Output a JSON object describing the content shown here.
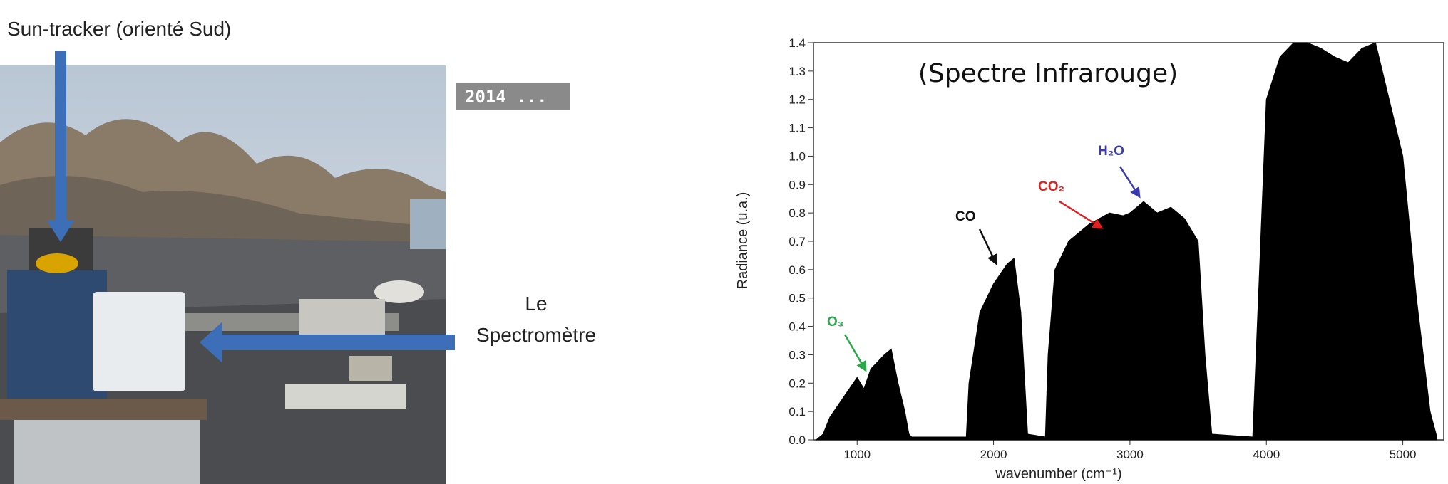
{
  "labels": {
    "sun_tracker": "Sun-tracker (orienté Sud)",
    "year": "2014 ...",
    "spectrometer_line1": "Le",
    "spectrometer_line2": "Spectromètre"
  },
  "chart_data": {
    "type": "area",
    "title": "(Spectre Infrarouge)",
    "x_label": "wavenumber (cm⁻¹)",
    "y_label": "Radiance (u.a.)",
    "annotations": [
      {
        "text": "O₃",
        "color": "#2aa84a"
      },
      {
        "text": "CO",
        "color": "#111111"
      },
      {
        "text": "CO₂",
        "color": "#e02020"
      },
      {
        "text": "H₂O",
        "color": "#3b3bb0"
      }
    ],
    "series": [
      {
        "color": "#000000",
        "x": [
          700,
          750,
          800,
          900,
          1000,
          1050,
          1100,
          1200,
          1250,
          1300,
          1350,
          1380,
          1400,
          1800,
          1820,
          1900,
          2000,
          2100,
          2150,
          2200,
          2250,
          2380,
          2400,
          2450,
          2550,
          2700,
          2850,
          2950,
          3000,
          3100,
          3200,
          3300,
          3400,
          3500,
          3550,
          3600,
          3900,
          3950,
          4000,
          4100,
          4200,
          4300,
          4400,
          4500,
          4600,
          4700,
          4800,
          4850,
          4900,
          5000,
          5100,
          5200,
          5250
        ],
        "values": [
          0.0,
          0.02,
          0.08,
          0.15,
          0.22,
          0.18,
          0.25,
          0.3,
          0.32,
          0.2,
          0.1,
          0.02,
          0.01,
          0.01,
          0.2,
          0.45,
          0.55,
          0.62,
          0.64,
          0.45,
          0.02,
          0.01,
          0.3,
          0.6,
          0.7,
          0.76,
          0.8,
          0.79,
          0.8,
          0.84,
          0.8,
          0.82,
          0.78,
          0.7,
          0.3,
          0.02,
          0.01,
          0.6,
          1.2,
          1.35,
          1.4,
          1.4,
          1.38,
          1.35,
          1.33,
          1.38,
          1.4,
          1.3,
          1.2,
          1.0,
          0.5,
          0.1,
          0.01
        ]
      }
    ],
    "xlim": [
      680,
      5300
    ],
    "xticks": [
      1000,
      2000,
      3000,
      4000,
      5000
    ],
    "ylim": [
      0,
      1.4
    ],
    "yticks": [
      {
        "value": 0,
        "label": "0.0"
      },
      0.1,
      0.2,
      0.3,
      0.4,
      0.5,
      0.6,
      0.7,
      0.8,
      0.9,
      {
        "value": 1,
        "label": "1.0"
      },
      1.1,
      1.2,
      1.3,
      1.4
    ]
  }
}
